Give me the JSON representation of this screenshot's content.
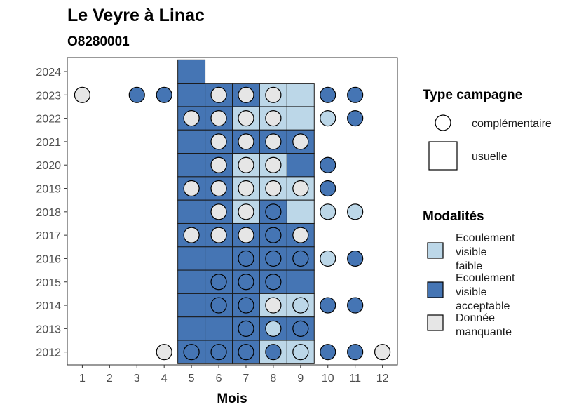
{
  "chart_data": {
    "type": "heatmap",
    "title": "Le Veyre à Linac",
    "subtitle": "O8280001",
    "xlabel": "Mois",
    "ylabel": "",
    "x_ticks": [
      1,
      2,
      3,
      4,
      5,
      6,
      7,
      8,
      9,
      10,
      11,
      12
    ],
    "y_ticks": [
      2012,
      2013,
      2014,
      2015,
      2016,
      2017,
      2018,
      2019,
      2020,
      2021,
      2022,
      2023,
      2024
    ],
    "xlim": [
      0.45,
      12.55
    ],
    "ylim": [
      2011.45,
      2024.6
    ],
    "colors": {
      "Ecoulement visible faible": "#bcd7e8",
      "Ecoulement visible acceptable": "#4575b4",
      "Donnée manquante": "#e6e6e6"
    },
    "legend_shape": {
      "title": "Type campagne",
      "items": [
        {
          "label": "complémentaire",
          "shape": "circle"
        },
        {
          "label": "usuelle",
          "shape": "square"
        }
      ]
    },
    "legend_fill": {
      "title": "Modalités",
      "items": [
        {
          "label": "Ecoulement visible faible",
          "lines": [
            "Ecoulement",
            "visible",
            "faible"
          ],
          "color": "#bcd7e8"
        },
        {
          "label": "Ecoulement visible acceptable",
          "lines": [
            "Ecoulement",
            "visible",
            "acceptable"
          ],
          "color": "#4575b4"
        },
        {
          "label": "Donnée manquante",
          "lines": [
            "Donnée",
            "manquante"
          ],
          "color": "#e6e6e6"
        }
      ]
    },
    "tiles": [
      {
        "year": 2024,
        "month": 5,
        "modalite": "Ecoulement visible acceptable"
      },
      {
        "year": 2023,
        "month": 5,
        "modalite": "Ecoulement visible acceptable"
      },
      {
        "year": 2023,
        "month": 6,
        "modalite": "Ecoulement visible acceptable"
      },
      {
        "year": 2023,
        "month": 7,
        "modalite": "Ecoulement visible acceptable"
      },
      {
        "year": 2023,
        "month": 8,
        "modalite": "Ecoulement visible faible"
      },
      {
        "year": 2023,
        "month": 9,
        "modalite": "Ecoulement visible faible"
      },
      {
        "year": 2022,
        "month": 5,
        "modalite": "Ecoulement visible acceptable"
      },
      {
        "year": 2022,
        "month": 6,
        "modalite": "Ecoulement visible acceptable"
      },
      {
        "year": 2022,
        "month": 7,
        "modalite": "Ecoulement visible faible"
      },
      {
        "year": 2022,
        "month": 8,
        "modalite": "Ecoulement visible faible"
      },
      {
        "year": 2022,
        "month": 9,
        "modalite": "Ecoulement visible faible"
      },
      {
        "year": 2021,
        "month": 5,
        "modalite": "Ecoulement visible acceptable"
      },
      {
        "year": 2021,
        "month": 6,
        "modalite": "Ecoulement visible acceptable"
      },
      {
        "year": 2021,
        "month": 7,
        "modalite": "Ecoulement visible acceptable"
      },
      {
        "year": 2021,
        "month": 8,
        "modalite": "Ecoulement visible acceptable"
      },
      {
        "year": 2021,
        "month": 9,
        "modalite": "Ecoulement visible acceptable"
      },
      {
        "year": 2020,
        "month": 5,
        "modalite": "Ecoulement visible acceptable"
      },
      {
        "year": 2020,
        "month": 6,
        "modalite": "Ecoulement visible acceptable"
      },
      {
        "year": 2020,
        "month": 7,
        "modalite": "Ecoulement visible faible"
      },
      {
        "year": 2020,
        "month": 8,
        "modalite": "Ecoulement visible faible"
      },
      {
        "year": 2020,
        "month": 9,
        "modalite": "Ecoulement visible acceptable"
      },
      {
        "year": 2019,
        "month": 5,
        "modalite": "Ecoulement visible acceptable"
      },
      {
        "year": 2019,
        "month": 6,
        "modalite": "Ecoulement visible acceptable"
      },
      {
        "year": 2019,
        "month": 7,
        "modalite": "Ecoulement visible faible"
      },
      {
        "year": 2019,
        "month": 8,
        "modalite": "Ecoulement visible faible"
      },
      {
        "year": 2019,
        "month": 9,
        "modalite": "Ecoulement visible faible"
      },
      {
        "year": 2018,
        "month": 5,
        "modalite": "Ecoulement visible acceptable"
      },
      {
        "year": 2018,
        "month": 6,
        "modalite": "Ecoulement visible acceptable"
      },
      {
        "year": 2018,
        "month": 7,
        "modalite": "Ecoulement visible faible"
      },
      {
        "year": 2018,
        "month": 8,
        "modalite": "Ecoulement visible acceptable"
      },
      {
        "year": 2018,
        "month": 9,
        "modalite": "Ecoulement visible faible"
      },
      {
        "year": 2017,
        "month": 5,
        "modalite": "Ecoulement visible acceptable"
      },
      {
        "year": 2017,
        "month": 6,
        "modalite": "Ecoulement visible acceptable"
      },
      {
        "year": 2017,
        "month": 7,
        "modalite": "Ecoulement visible acceptable"
      },
      {
        "year": 2017,
        "month": 8,
        "modalite": "Ecoulement visible acceptable"
      },
      {
        "year": 2017,
        "month": 9,
        "modalite": "Ecoulement visible acceptable"
      },
      {
        "year": 2016,
        "month": 5,
        "modalite": "Ecoulement visible acceptable"
      },
      {
        "year": 2016,
        "month": 6,
        "modalite": "Ecoulement visible acceptable"
      },
      {
        "year": 2016,
        "month": 7,
        "modalite": "Ecoulement visible acceptable"
      },
      {
        "year": 2016,
        "month": 8,
        "modalite": "Ecoulement visible acceptable"
      },
      {
        "year": 2016,
        "month": 9,
        "modalite": "Ecoulement visible acceptable"
      },
      {
        "year": 2015,
        "month": 5,
        "modalite": "Ecoulement visible acceptable"
      },
      {
        "year": 2015,
        "month": 6,
        "modalite": "Ecoulement visible acceptable"
      },
      {
        "year": 2015,
        "month": 7,
        "modalite": "Ecoulement visible acceptable"
      },
      {
        "year": 2015,
        "month": 8,
        "modalite": "Ecoulement visible acceptable"
      },
      {
        "year": 2015,
        "month": 9,
        "modalite": "Ecoulement visible acceptable"
      },
      {
        "year": 2014,
        "month": 5,
        "modalite": "Ecoulement visible acceptable"
      },
      {
        "year": 2014,
        "month": 6,
        "modalite": "Ecoulement visible acceptable"
      },
      {
        "year": 2014,
        "month": 7,
        "modalite": "Ecoulement visible acceptable"
      },
      {
        "year": 2014,
        "month": 8,
        "modalite": "Ecoulement visible faible"
      },
      {
        "year": 2014,
        "month": 9,
        "modalite": "Ecoulement visible faible"
      },
      {
        "year": 2013,
        "month": 5,
        "modalite": "Ecoulement visible acceptable"
      },
      {
        "year": 2013,
        "month": 6,
        "modalite": "Ecoulement visible acceptable"
      },
      {
        "year": 2013,
        "month": 7,
        "modalite": "Ecoulement visible acceptable"
      },
      {
        "year": 2013,
        "month": 8,
        "modalite": "Ecoulement visible acceptable"
      },
      {
        "year": 2013,
        "month": 9,
        "modalite": "Ecoulement visible acceptable"
      },
      {
        "year": 2012,
        "month": 5,
        "modalite": "Ecoulement visible acceptable"
      },
      {
        "year": 2012,
        "month": 6,
        "modalite": "Ecoulement visible acceptable"
      },
      {
        "year": 2012,
        "month": 7,
        "modalite": "Ecoulement visible acceptable"
      },
      {
        "year": 2012,
        "month": 8,
        "modalite": "Ecoulement visible faible"
      },
      {
        "year": 2012,
        "month": 9,
        "modalite": "Ecoulement visible faible"
      }
    ],
    "points": [
      {
        "year": 2023,
        "month": 1,
        "modalite": "Donnée manquante"
      },
      {
        "year": 2023,
        "month": 3,
        "modalite": "Ecoulement visible acceptable"
      },
      {
        "year": 2023,
        "month": 4,
        "modalite": "Ecoulement visible acceptable"
      },
      {
        "year": 2023,
        "month": 6,
        "modalite": "Donnée manquante"
      },
      {
        "year": 2023,
        "month": 7,
        "modalite": "Donnée manquante"
      },
      {
        "year": 2023,
        "month": 8,
        "modalite": "Donnée manquante"
      },
      {
        "year": 2023,
        "month": 10,
        "modalite": "Ecoulement visible acceptable"
      },
      {
        "year": 2023,
        "month": 11,
        "modalite": "Ecoulement visible acceptable"
      },
      {
        "year": 2022,
        "month": 5,
        "modalite": "Donnée manquante"
      },
      {
        "year": 2022,
        "month": 6,
        "modalite": "Donnée manquante"
      },
      {
        "year": 2022,
        "month": 7,
        "modalite": "Donnée manquante"
      },
      {
        "year": 2022,
        "month": 8,
        "modalite": "Donnée manquante"
      },
      {
        "year": 2022,
        "month": 10,
        "modalite": "Ecoulement visible faible"
      },
      {
        "year": 2022,
        "month": 11,
        "modalite": "Ecoulement visible acceptable"
      },
      {
        "year": 2021,
        "month": 6,
        "modalite": "Donnée manquante"
      },
      {
        "year": 2021,
        "month": 7,
        "modalite": "Donnée manquante"
      },
      {
        "year": 2021,
        "month": 8,
        "modalite": "Donnée manquante"
      },
      {
        "year": 2021,
        "month": 9,
        "modalite": "Donnée manquante"
      },
      {
        "year": 2020,
        "month": 6,
        "modalite": "Donnée manquante"
      },
      {
        "year": 2020,
        "month": 7,
        "modalite": "Donnée manquante"
      },
      {
        "year": 2020,
        "month": 8,
        "modalite": "Donnée manquante"
      },
      {
        "year": 2020,
        "month": 10,
        "modalite": "Ecoulement visible acceptable"
      },
      {
        "year": 2019,
        "month": 5,
        "modalite": "Donnée manquante"
      },
      {
        "year": 2019,
        "month": 6,
        "modalite": "Donnée manquante"
      },
      {
        "year": 2019,
        "month": 7,
        "modalite": "Donnée manquante"
      },
      {
        "year": 2019,
        "month": 8,
        "modalite": "Donnée manquante"
      },
      {
        "year": 2019,
        "month": 9,
        "modalite": "Donnée manquante"
      },
      {
        "year": 2019,
        "month": 10,
        "modalite": "Ecoulement visible acceptable"
      },
      {
        "year": 2018,
        "month": 6,
        "modalite": "Donnée manquante"
      },
      {
        "year": 2018,
        "month": 7,
        "modalite": "Donnée manquante"
      },
      {
        "year": 2018,
        "month": 8,
        "modalite": "Ecoulement visible acceptable"
      },
      {
        "year": 2018,
        "month": 10,
        "modalite": "Ecoulement visible faible"
      },
      {
        "year": 2018,
        "month": 11,
        "modalite": "Ecoulement visible faible"
      },
      {
        "year": 2017,
        "month": 5,
        "modalite": "Donnée manquante"
      },
      {
        "year": 2017,
        "month": 6,
        "modalite": "Donnée manquante"
      },
      {
        "year": 2017,
        "month": 7,
        "modalite": "Donnée manquante"
      },
      {
        "year": 2017,
        "month": 8,
        "modalite": "Ecoulement visible acceptable"
      },
      {
        "year": 2017,
        "month": 9,
        "modalite": "Donnée manquante"
      },
      {
        "year": 2016,
        "month": 7,
        "modalite": "Ecoulement visible acceptable"
      },
      {
        "year": 2016,
        "month": 8,
        "modalite": "Ecoulement visible acceptable"
      },
      {
        "year": 2016,
        "month": 9,
        "modalite": "Ecoulement visible acceptable"
      },
      {
        "year": 2016,
        "month": 10,
        "modalite": "Ecoulement visible faible"
      },
      {
        "year": 2016,
        "month": 11,
        "modalite": "Ecoulement visible acceptable"
      },
      {
        "year": 2015,
        "month": 6,
        "modalite": "Ecoulement visible acceptable"
      },
      {
        "year": 2015,
        "month": 7,
        "modalite": "Ecoulement visible acceptable"
      },
      {
        "year": 2015,
        "month": 8,
        "modalite": "Ecoulement visible acceptable"
      },
      {
        "year": 2014,
        "month": 6,
        "modalite": "Ecoulement visible acceptable"
      },
      {
        "year": 2014,
        "month": 7,
        "modalite": "Ecoulement visible acceptable"
      },
      {
        "year": 2014,
        "month": 8,
        "modalite": "Donnée manquante"
      },
      {
        "year": 2014,
        "month": 9,
        "modalite": "Ecoulement visible faible"
      },
      {
        "year": 2014,
        "month": 10,
        "modalite": "Ecoulement visible acceptable"
      },
      {
        "year": 2014,
        "month": 11,
        "modalite": "Ecoulement visible acceptable"
      },
      {
        "year": 2013,
        "month": 7,
        "modalite": "Ecoulement visible acceptable"
      },
      {
        "year": 2013,
        "month": 8,
        "modalite": "Ecoulement visible faible"
      },
      {
        "year": 2013,
        "month": 9,
        "modalite": "Ecoulement visible acceptable"
      },
      {
        "year": 2012,
        "month": 4,
        "modalite": "Donnée manquante"
      },
      {
        "year": 2012,
        "month": 5,
        "modalite": "Ecoulement visible acceptable"
      },
      {
        "year": 2012,
        "month": 6,
        "modalite": "Ecoulement visible acceptable"
      },
      {
        "year": 2012,
        "month": 7,
        "modalite": "Ecoulement visible acceptable"
      },
      {
        "year": 2012,
        "month": 8,
        "modalite": "Ecoulement visible acceptable"
      },
      {
        "year": 2012,
        "month": 9,
        "modalite": "Ecoulement visible faible"
      },
      {
        "year": 2012,
        "month": 10,
        "modalite": "Ecoulement visible acceptable"
      },
      {
        "year": 2012,
        "month": 11,
        "modalite": "Ecoulement visible acceptable"
      },
      {
        "year": 2012,
        "month": 12,
        "modalite": "Donnée manquante"
      }
    ]
  }
}
